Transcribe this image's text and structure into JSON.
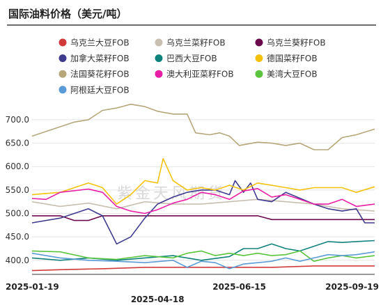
{
  "chart_data": {
    "type": "line",
    "title": "国际油料价格（美元/吨）",
    "watermark": "紫金天风期货",
    "x_range": [
      "2025-01-19",
      "2025-09-19"
    ],
    "x_ticks": [
      "2025-01-19",
      "2025-04-18",
      "2025-06-15",
      "2025-09-19"
    ],
    "ylim": [
      370,
      740
    ],
    "y_ticks": [
      "400.0",
      "450.0",
      "500.0",
      "550.0",
      "600.0",
      "650.0",
      "700.0"
    ],
    "y_tick_values": [
      400,
      450,
      500,
      550,
      600,
      650,
      700
    ],
    "legend_placement": "top",
    "series": [
      {
        "name": "乌克兰大豆FOB",
        "color": "#d03a3a",
        "points": [
          [
            "2025-01-19",
            378
          ],
          [
            "2025-02-08",
            380
          ],
          [
            "2025-03-10",
            382
          ],
          [
            "2025-04-09",
            385
          ],
          [
            "2025-05-09",
            385
          ],
          [
            "2025-06-08",
            385
          ],
          [
            "2025-07-08",
            385
          ],
          [
            "2025-08-07",
            388
          ],
          [
            "2025-09-19",
            388
          ]
        ]
      },
      {
        "name": "乌克兰菜籽FOB",
        "color": "#c8bfb0",
        "points": [
          [
            "2025-01-19",
            525
          ],
          [
            "2025-02-08",
            515
          ],
          [
            "2025-02-28",
            522
          ],
          [
            "2025-03-20",
            510
          ],
          [
            "2025-04-09",
            525
          ],
          [
            "2025-04-29",
            520
          ],
          [
            "2025-05-19",
            520
          ],
          [
            "2025-06-08",
            525
          ],
          [
            "2025-06-28",
            530
          ],
          [
            "2025-07-18",
            525
          ],
          [
            "2025-08-07",
            520
          ],
          [
            "2025-08-27",
            510
          ],
          [
            "2025-09-19",
            505
          ]
        ]
      },
      {
        "name": "乌克兰葵籽FOB",
        "color": "#6b0a4a",
        "points": [
          [
            "2025-01-19",
            495
          ],
          [
            "2025-02-08",
            495
          ],
          [
            "2025-02-18",
            485
          ],
          [
            "2025-02-28",
            485
          ],
          [
            "2025-03-10",
            495
          ],
          [
            "2025-03-30",
            495
          ],
          [
            "2025-04-29",
            495
          ],
          [
            "2025-05-29",
            495
          ],
          [
            "2025-06-28",
            495
          ],
          [
            "2025-07-08",
            487
          ],
          [
            "2025-08-07",
            487
          ],
          [
            "2025-09-19",
            487
          ]
        ]
      },
      {
        "name": "加拿大菜籽FOB",
        "color": "#3e3a8e",
        "points": [
          [
            "2025-01-19",
            480
          ],
          [
            "2025-02-08",
            490
          ],
          [
            "2025-02-28",
            510
          ],
          [
            "2025-03-10",
            495
          ],
          [
            "2025-03-20",
            435
          ],
          [
            "2025-03-30",
            450
          ],
          [
            "2025-04-09",
            490
          ],
          [
            "2025-04-18",
            520
          ],
          [
            "2025-04-29",
            535
          ],
          [
            "2025-05-09",
            545
          ],
          [
            "2025-05-19",
            550
          ],
          [
            "2025-05-29",
            550
          ],
          [
            "2025-06-08",
            540
          ],
          [
            "2025-06-12",
            570
          ],
          [
            "2025-06-18",
            545
          ],
          [
            "2025-06-23",
            565
          ],
          [
            "2025-06-28",
            530
          ],
          [
            "2025-07-08",
            525
          ],
          [
            "2025-07-18",
            545
          ],
          [
            "2025-08-07",
            520
          ],
          [
            "2025-08-17",
            510
          ],
          [
            "2025-08-27",
            505
          ],
          [
            "2025-09-06",
            510
          ],
          [
            "2025-09-12",
            480
          ],
          [
            "2025-09-19",
            480
          ]
        ]
      },
      {
        "name": "巴西大豆FOB",
        "color": "#10827c",
        "points": [
          [
            "2025-01-19",
            405
          ],
          [
            "2025-02-08",
            400
          ],
          [
            "2025-02-28",
            405
          ],
          [
            "2025-03-20",
            400
          ],
          [
            "2025-04-09",
            405
          ],
          [
            "2025-04-29",
            410
          ],
          [
            "2025-05-19",
            400
          ],
          [
            "2025-06-08",
            408
          ],
          [
            "2025-06-18",
            425
          ],
          [
            "2025-06-28",
            425
          ],
          [
            "2025-07-08",
            435
          ],
          [
            "2025-07-18",
            425
          ],
          [
            "2025-07-28",
            420
          ],
          [
            "2025-08-07",
            430
          ],
          [
            "2025-08-17",
            440
          ],
          [
            "2025-08-27",
            438
          ],
          [
            "2025-09-06",
            440
          ],
          [
            "2025-09-19",
            442
          ]
        ]
      },
      {
        "name": "德国菜籽FOB",
        "color": "#f4c20d",
        "points": [
          [
            "2025-01-19",
            540
          ],
          [
            "2025-02-08",
            545
          ],
          [
            "2025-02-28",
            565
          ],
          [
            "2025-03-10",
            555
          ],
          [
            "2025-03-20",
            520
          ],
          [
            "2025-03-30",
            540
          ],
          [
            "2025-04-09",
            570
          ],
          [
            "2025-04-18",
            565
          ],
          [
            "2025-04-22",
            617
          ],
          [
            "2025-04-29",
            570
          ],
          [
            "2025-05-09",
            550
          ],
          [
            "2025-05-19",
            555
          ],
          [
            "2025-05-29",
            550
          ],
          [
            "2025-06-08",
            560
          ],
          [
            "2025-06-18",
            550
          ],
          [
            "2025-06-28",
            565
          ],
          [
            "2025-07-08",
            560
          ],
          [
            "2025-07-18",
            555
          ],
          [
            "2025-07-28",
            550
          ],
          [
            "2025-08-07",
            555
          ],
          [
            "2025-08-17",
            555
          ],
          [
            "2025-08-27",
            555
          ],
          [
            "2025-09-06",
            545
          ],
          [
            "2025-09-19",
            557
          ]
        ]
      },
      {
        "name": "法国葵花籽FOB",
        "color": "#b5a77a",
        "points": [
          [
            "2025-01-19",
            665
          ],
          [
            "2025-01-29",
            675
          ],
          [
            "2025-02-08",
            685
          ],
          [
            "2025-02-18",
            695
          ],
          [
            "2025-02-28",
            700
          ],
          [
            "2025-03-10",
            720
          ],
          [
            "2025-03-20",
            725
          ],
          [
            "2025-03-30",
            733
          ],
          [
            "2025-04-09",
            728
          ],
          [
            "2025-04-18",
            718
          ],
          [
            "2025-04-29",
            712
          ],
          [
            "2025-05-09",
            712
          ],
          [
            "2025-05-15",
            672
          ],
          [
            "2025-05-25",
            668
          ],
          [
            "2025-06-01",
            672
          ],
          [
            "2025-06-08",
            665
          ],
          [
            "2025-06-15",
            645
          ],
          [
            "2025-06-28",
            652
          ],
          [
            "2025-07-08",
            650
          ],
          [
            "2025-07-18",
            645
          ],
          [
            "2025-07-28",
            650
          ],
          [
            "2025-08-07",
            636
          ],
          [
            "2025-08-17",
            636
          ],
          [
            "2025-08-27",
            662
          ],
          [
            "2025-09-06",
            668
          ],
          [
            "2025-09-19",
            680
          ]
        ]
      },
      {
        "name": "澳大利亚菜籽FOB",
        "color": "#e91ea6",
        "points": [
          [
            "2025-01-19",
            532
          ],
          [
            "2025-01-29",
            530
          ],
          [
            "2025-02-08",
            545
          ],
          [
            "2025-02-28",
            552
          ],
          [
            "2025-03-10",
            545
          ],
          [
            "2025-03-20",
            515
          ],
          [
            "2025-03-30",
            505
          ],
          [
            "2025-04-09",
            500
          ],
          [
            "2025-04-18",
            508
          ],
          [
            "2025-04-29",
            522
          ],
          [
            "2025-05-09",
            530
          ],
          [
            "2025-05-19",
            545
          ],
          [
            "2025-05-29",
            540
          ],
          [
            "2025-06-08",
            530
          ],
          [
            "2025-06-18",
            548
          ],
          [
            "2025-06-28",
            553
          ],
          [
            "2025-07-08",
            535
          ],
          [
            "2025-07-18",
            540
          ],
          [
            "2025-07-28",
            530
          ],
          [
            "2025-08-07",
            520
          ],
          [
            "2025-08-17",
            520
          ],
          [
            "2025-08-27",
            530
          ],
          [
            "2025-09-06",
            515
          ],
          [
            "2025-09-19",
            520
          ]
        ]
      },
      {
        "name": "美湾大豆FOB",
        "color": "#5ac43e",
        "points": [
          [
            "2025-01-19",
            420
          ],
          [
            "2025-02-08",
            418
          ],
          [
            "2025-02-28",
            405
          ],
          [
            "2025-03-20",
            402
          ],
          [
            "2025-04-09",
            410
          ],
          [
            "2025-04-29",
            405
          ],
          [
            "2025-05-09",
            415
          ],
          [
            "2025-05-19",
            420
          ],
          [
            "2025-05-29",
            410
          ],
          [
            "2025-06-08",
            415
          ],
          [
            "2025-06-18",
            410
          ],
          [
            "2025-06-28",
            415
          ],
          [
            "2025-07-08",
            410
          ],
          [
            "2025-07-18",
            412
          ],
          [
            "2025-07-28",
            420
          ],
          [
            "2025-08-07",
            398
          ],
          [
            "2025-08-17",
            405
          ],
          [
            "2025-08-27",
            410
          ],
          [
            "2025-09-06",
            405
          ],
          [
            "2025-09-19",
            410
          ]
        ]
      },
      {
        "name": "阿根廷大豆FOB",
        "color": "#5b9bd5",
        "points": [
          [
            "2025-01-19",
            415
          ],
          [
            "2025-02-08",
            405
          ],
          [
            "2025-02-28",
            400
          ],
          [
            "2025-03-20",
            398
          ],
          [
            "2025-04-09",
            395
          ],
          [
            "2025-04-29",
            400
          ],
          [
            "2025-05-09",
            385
          ],
          [
            "2025-05-19",
            398
          ],
          [
            "2025-05-29",
            395
          ],
          [
            "2025-06-08",
            382
          ],
          [
            "2025-06-18",
            392
          ],
          [
            "2025-06-28",
            395
          ],
          [
            "2025-07-08",
            398
          ],
          [
            "2025-07-18",
            405
          ],
          [
            "2025-07-28",
            398
          ],
          [
            "2025-08-07",
            405
          ],
          [
            "2025-08-17",
            412
          ],
          [
            "2025-08-27",
            410
          ],
          [
            "2025-09-06",
            412
          ],
          [
            "2025-09-19",
            418
          ]
        ]
      }
    ]
  }
}
